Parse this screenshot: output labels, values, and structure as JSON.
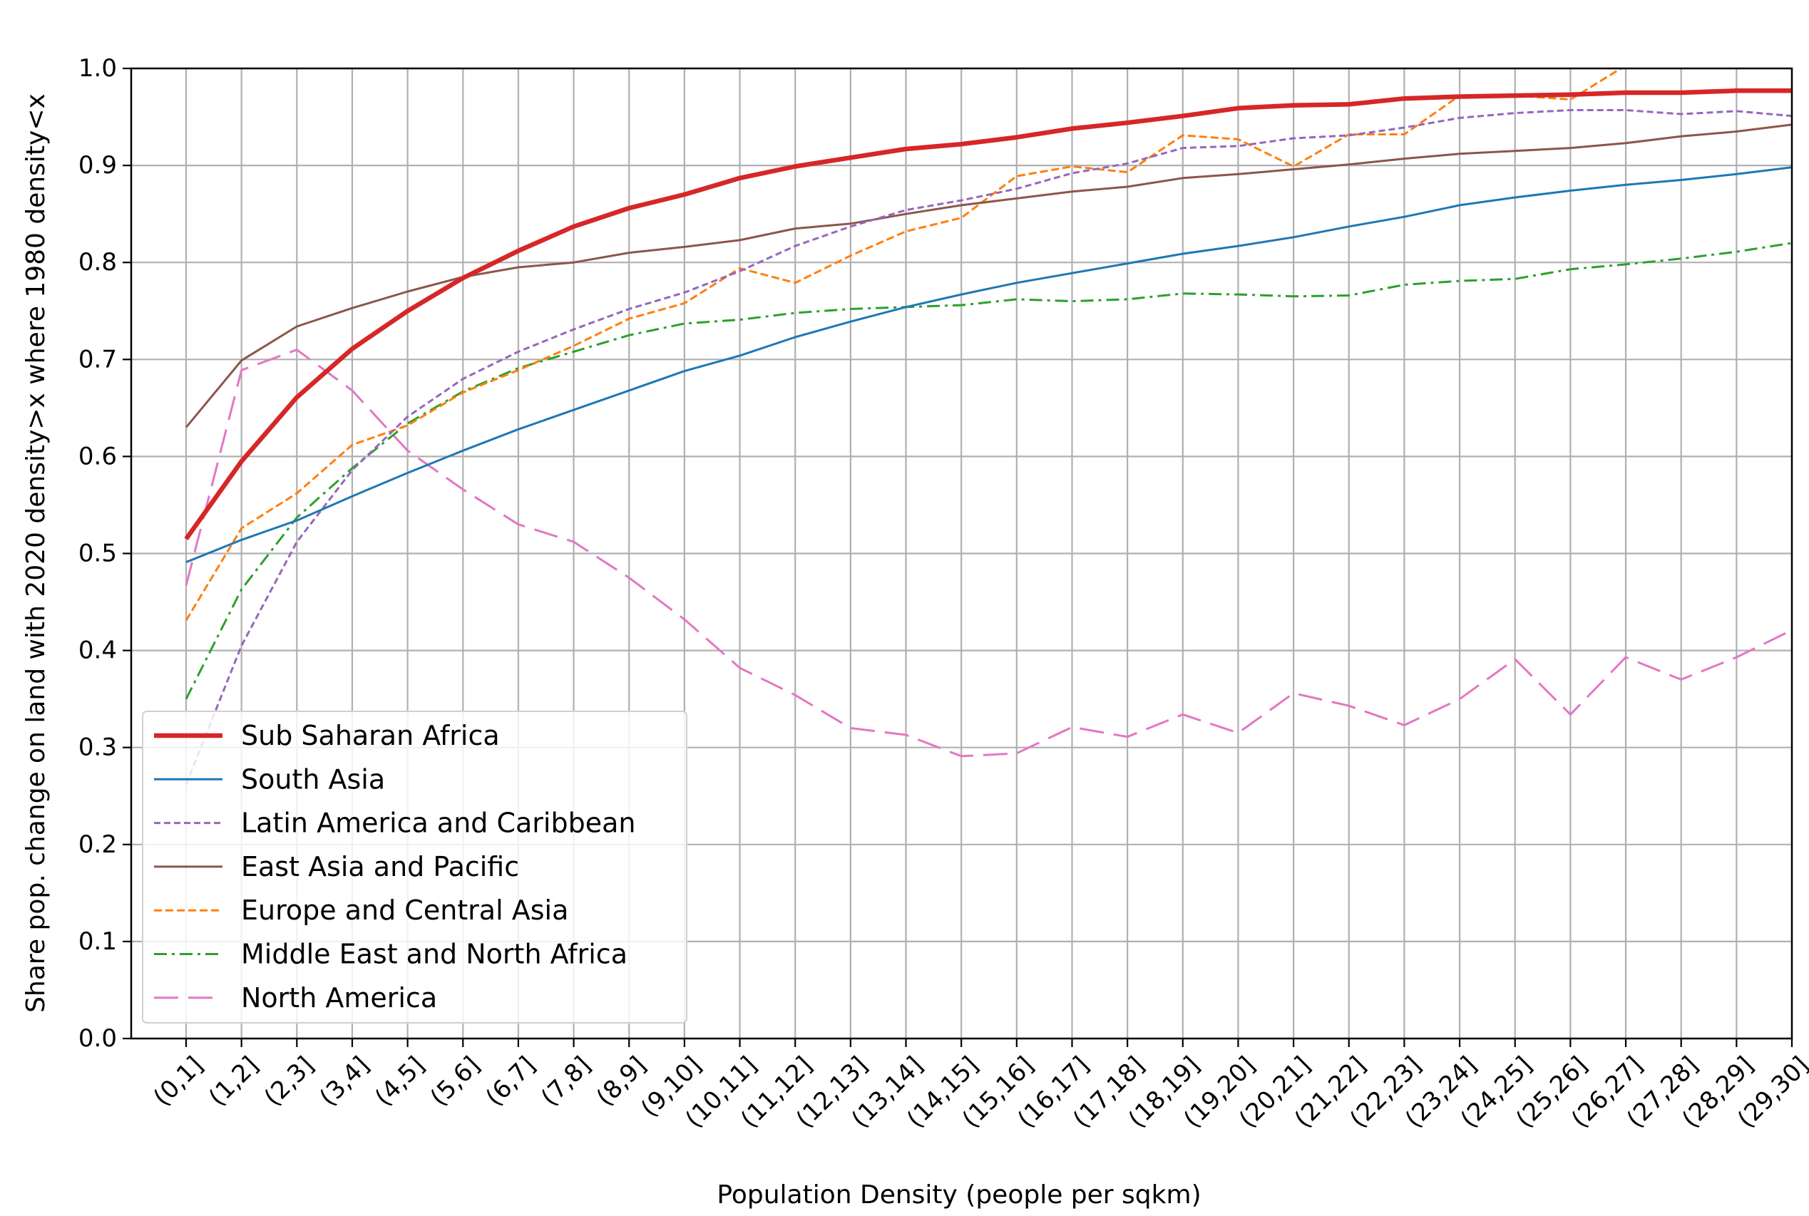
{
  "chart_data": {
    "type": "line",
    "title": "",
    "xlabel": "Population Density (people per sqkm)",
    "ylabel": "Share pop. change on land with 2020 density>x where 1980 density<x",
    "categories": [
      "(0,1]",
      "(1,2]",
      "(2,3]",
      "(3,4]",
      "(4,5]",
      "(5,6]",
      "(6,7]",
      "(7,8]",
      "(8,9]",
      "(9,10]",
      "(10,11]",
      "(11,12]",
      "(12,13]",
      "(13,14]",
      "(14,15]",
      "(15,16]",
      "(16,17]",
      "(17,18]",
      "(18,19]",
      "(19,20]",
      "(20,21]",
      "(21,22]",
      "(22,23]",
      "(23,24]",
      "(24,25]",
      "(25,26]",
      "(26,27]",
      "(27,28]",
      "(28,29]",
      "(29,30]"
    ],
    "ylim": [
      0,
      1.0
    ],
    "yticks": [
      "0.0",
      "0.1",
      "0.2",
      "0.3",
      "0.4",
      "0.5",
      "0.6",
      "0.7",
      "0.8",
      "0.9",
      "1.0"
    ],
    "grid": true,
    "legend_position": "lower-left",
    "series": [
      {
        "name": "Sub Saharan Africa",
        "color": "#d62728",
        "style": "solid-thick",
        "values": [
          0.515,
          0.595,
          0.661,
          0.711,
          0.75,
          0.784,
          0.812,
          0.837,
          0.856,
          0.87,
          0.887,
          0.899,
          0.908,
          0.917,
          0.922,
          0.929,
          0.938,
          0.944,
          0.951,
          0.959,
          0.962,
          0.963,
          0.969,
          0.971,
          0.972,
          0.973,
          0.975,
          0.975,
          0.977,
          0.977
        ]
      },
      {
        "name": "South Asia",
        "color": "#1f77b4",
        "style": "solid",
        "values": [
          0.491,
          0.514,
          0.534,
          0.559,
          0.583,
          0.606,
          0.628,
          0.648,
          0.668,
          0.688,
          0.704,
          0.723,
          0.739,
          0.754,
          0.767,
          0.779,
          0.789,
          0.799,
          0.809,
          0.817,
          0.826,
          0.837,
          0.847,
          0.859,
          0.867,
          0.874,
          0.88,
          0.885,
          0.891,
          0.898
        ]
      },
      {
        "name": "Latin America and Caribbean",
        "color": "#9467bd",
        "style": "dashed-short",
        "values": [
          0.262,
          0.405,
          0.512,
          0.586,
          0.641,
          0.68,
          0.708,
          0.731,
          0.752,
          0.769,
          0.791,
          0.817,
          0.837,
          0.854,
          0.864,
          0.876,
          0.892,
          0.902,
          0.918,
          0.92,
          0.928,
          0.931,
          0.939,
          0.949,
          0.954,
          0.957,
          0.957,
          0.953,
          0.956,
          0.951
        ]
      },
      {
        "name": "East Asia and Pacific",
        "color": "#8c564b",
        "style": "solid",
        "values": [
          0.63,
          0.699,
          0.734,
          0.753,
          0.77,
          0.785,
          0.795,
          0.8,
          0.81,
          0.816,
          0.823,
          0.835,
          0.84,
          0.85,
          0.859,
          0.866,
          0.873,
          0.878,
          0.887,
          0.891,
          0.896,
          0.901,
          0.907,
          0.912,
          0.915,
          0.918,
          0.923,
          0.93,
          0.935,
          0.942
        ]
      },
      {
        "name": "Europe and Central Asia",
        "color": "#ff7f0e",
        "style": "dashed",
        "values": [
          0.431,
          0.526,
          0.562,
          0.612,
          0.632,
          0.666,
          0.689,
          0.714,
          0.742,
          0.758,
          0.794,
          0.779,
          0.807,
          0.832,
          0.846,
          0.889,
          0.899,
          0.893,
          0.931,
          0.927,
          0.899,
          0.932,
          0.932,
          0.972,
          0.972,
          0.968,
          1.003,
          1.012,
          1.007,
          1.022
        ]
      },
      {
        "name": "Middle East and North Africa",
        "color": "#2ca02c",
        "style": "dashdot",
        "values": [
          0.35,
          0.463,
          0.537,
          0.588,
          0.634,
          0.667,
          0.691,
          0.708,
          0.725,
          0.737,
          0.741,
          0.748,
          0.752,
          0.754,
          0.756,
          0.762,
          0.76,
          0.762,
          0.768,
          0.767,
          0.765,
          0.766,
          0.777,
          0.781,
          0.783,
          0.793,
          0.798,
          0.804,
          0.811,
          0.82
        ]
      },
      {
        "name": "North America",
        "color": "#e377c2",
        "style": "dashed-long",
        "values": [
          0.467,
          0.689,
          0.71,
          0.668,
          0.606,
          0.566,
          0.53,
          0.512,
          0.475,
          0.432,
          0.382,
          0.354,
          0.32,
          0.313,
          0.291,
          0.294,
          0.321,
          0.311,
          0.334,
          0.315,
          0.356,
          0.343,
          0.323,
          0.35,
          0.391,
          0.334,
          0.393,
          0.37,
          0.393,
          0.421
        ]
      }
    ]
  }
}
